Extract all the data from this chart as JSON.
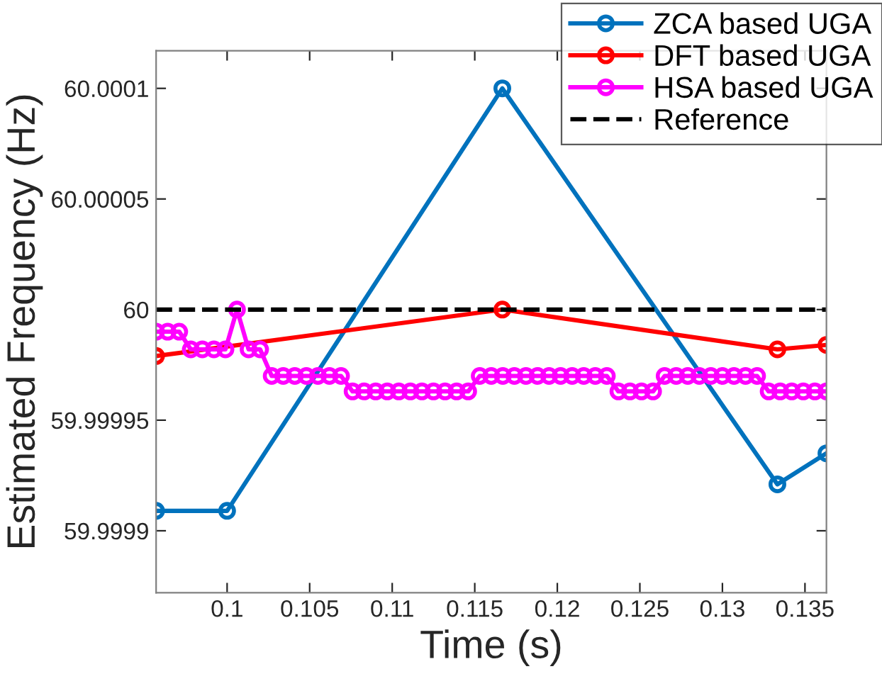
{
  "chart_data": {
    "type": "line",
    "xlabel": "Time (s)",
    "ylabel": "Estimated Frequency (Hz)",
    "xlim": [
      0.0957,
      0.1363
    ],
    "ylim": [
      59.999872,
      60.000117
    ],
    "xticks": [
      0.1,
      0.105,
      0.11,
      0.115,
      0.12,
      0.125,
      0.13,
      0.135
    ],
    "yticks": [
      59.9999,
      59.99995,
      60,
      60.00005,
      60.0001
    ],
    "grid": false,
    "legend": "top right",
    "marker": "circle",
    "line_style": "solid",
    "series": [
      {
        "name": "ZCA based UGA",
        "color": "#0072bd",
        "x": [
          0.0957,
          0.1,
          0.11667,
          0.13333,
          0.1363
        ],
        "values": [
          59.999909,
          59.999909,
          60.0001,
          59.999921,
          59.999935
        ]
      },
      {
        "name": "DFT based UGA",
        "color": "#ff0000",
        "x": [
          0.0957,
          0.11667,
          0.13333,
          0.1363
        ],
        "values": [
          59.999979,
          60,
          59.999982,
          59.999984
        ]
      },
      {
        "name": "HSA based UGA",
        "color": "#ff00ff",
        "x": [
          0.0957,
          0.0964,
          0.0971,
          0.0978,
          0.0985,
          0.0992,
          0.0999,
          0.1006,
          0.1013,
          0.102,
          0.1027,
          0.1034,
          0.1041,
          0.1048,
          0.1055,
          0.1062,
          0.1069,
          0.1076,
          0.1083,
          0.109,
          0.1097,
          0.1104,
          0.1111,
          0.1118,
          0.1125,
          0.1132,
          0.1139,
          0.1146,
          0.1153,
          0.116,
          0.1167,
          0.1174,
          0.1181,
          0.1188,
          0.1195,
          0.1202,
          0.1209,
          0.1216,
          0.1223,
          0.123,
          0.1237,
          0.1244,
          0.1251,
          0.1258,
          0.1265,
          0.1272,
          0.1279,
          0.1286,
          0.1293,
          0.13,
          0.1307,
          0.1314,
          0.1321,
          0.1328,
          0.1335,
          0.1342,
          0.1349,
          0.1356,
          0.1363
        ],
        "values": [
          59.99999,
          59.99999,
          59.99999,
          59.999982,
          59.999982,
          59.999982,
          59.999982,
          60,
          59.999982,
          59.999982,
          59.99997,
          59.99997,
          59.99997,
          59.99997,
          59.99997,
          59.99997,
          59.99997,
          59.999963,
          59.999963,
          59.999963,
          59.999963,
          59.999963,
          59.999963,
          59.999963,
          59.999963,
          59.999963,
          59.999963,
          59.999963,
          59.99997,
          59.99997,
          59.99997,
          59.99997,
          59.99997,
          59.99997,
          59.99997,
          59.99997,
          59.99997,
          59.99997,
          59.99997,
          59.99997,
          59.999963,
          59.999963,
          59.999963,
          59.999963,
          59.99997,
          59.99997,
          59.99997,
          59.99997,
          59.99997,
          59.99997,
          59.99997,
          59.99997,
          59.99997,
          59.999963,
          59.999963,
          59.999963,
          59.999963,
          59.999963,
          59.999963
        ]
      }
    ],
    "ref_lines": [
      {
        "axis": "y",
        "value": 60,
        "label": "Reference",
        "color": "#000000",
        "line_style": "dashed"
      }
    ]
  }
}
